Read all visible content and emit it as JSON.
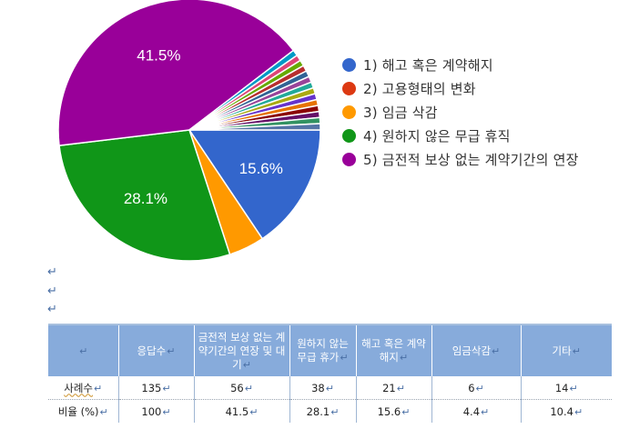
{
  "chart_data": {
    "type": "pie",
    "title": "",
    "start_angle_deg": 90,
    "center": [
      208,
      143
    ],
    "radius": 144,
    "slices": [
      {
        "label": "1) 해고 혹은 계약해지",
        "value": 15.6,
        "color": "#3366cc",
        "show_label": "15.6%"
      },
      {
        "label": "3) 임금 삭감",
        "value": 4.4,
        "color": "#ff9900",
        "show_label": ""
      },
      {
        "label": "4) 원하지 않은 무급 휴직",
        "value": 28.1,
        "color": "#109618",
        "show_label": "28.1%"
      },
      {
        "label": "5) 금전적 보상 없는 계약기간의 연장",
        "value": 41.5,
        "color": "#990099",
        "show_label": "41.5%"
      },
      {
        "label": "기타",
        "value": 0.74,
        "color": "#0099c6",
        "show_label": ""
      },
      {
        "label": "기타",
        "value": 0.74,
        "color": "#dd4477",
        "show_label": ""
      },
      {
        "label": "기타",
        "value": 0.74,
        "color": "#66aa00",
        "show_label": ""
      },
      {
        "label": "기타",
        "value": 0.74,
        "color": "#b82e2e",
        "show_label": ""
      },
      {
        "label": "기타",
        "value": 0.74,
        "color": "#316395",
        "show_label": ""
      },
      {
        "label": "기타",
        "value": 0.74,
        "color": "#994499",
        "show_label": ""
      },
      {
        "label": "기타",
        "value": 0.74,
        "color": "#22aa99",
        "show_label": ""
      },
      {
        "label": "기타",
        "value": 0.74,
        "color": "#aaaa11",
        "show_label": ""
      },
      {
        "label": "기타",
        "value": 0.74,
        "color": "#6633cc",
        "show_label": ""
      },
      {
        "label": "기타",
        "value": 0.74,
        "color": "#e67300",
        "show_label": ""
      },
      {
        "label": "기타",
        "value": 0.74,
        "color": "#8b0707",
        "show_label": ""
      },
      {
        "label": "기타",
        "value": 0.74,
        "color": "#651067",
        "show_label": ""
      },
      {
        "label": "기타",
        "value": 0.74,
        "color": "#329262",
        "show_label": ""
      },
      {
        "label": "기타",
        "value": 0.78,
        "color": "#5574a6",
        "show_label": ""
      }
    ],
    "legend": [
      {
        "label": "1) 해고 혹은 계약해지",
        "color": "#3366cc"
      },
      {
        "label": "2) 고용형태의 변화",
        "color": "#dc3912"
      },
      {
        "label": "3) 임금 삭감",
        "color": "#ff9900"
      },
      {
        "label": "4) 원하지 않은 무급 휴직",
        "color": "#109618"
      },
      {
        "label": "5) 금전적 보상 없는 계약기간의 연장",
        "color": "#990099"
      }
    ],
    "legend_position": "right"
  },
  "paragraph_marks": [
    "↵",
    "↵",
    "↵"
  ],
  "table": {
    "return_mark": "↵",
    "headers": [
      "",
      "응답수",
      "금전적 보상 없는 계약기간의 연장 및 대기",
      "원하지 않는 무급 휴가",
      "해고 혹은 계약해지",
      "임금삭감",
      "기타"
    ],
    "rows": [
      {
        "label": "사례수",
        "values": [
          "135",
          "56",
          "38",
          "21",
          "6",
          "14"
        ]
      },
      {
        "label": "비율 (%)",
        "values": [
          "100",
          "41.5",
          "28.1",
          "15.6",
          "4.4",
          "10.4"
        ]
      }
    ]
  }
}
